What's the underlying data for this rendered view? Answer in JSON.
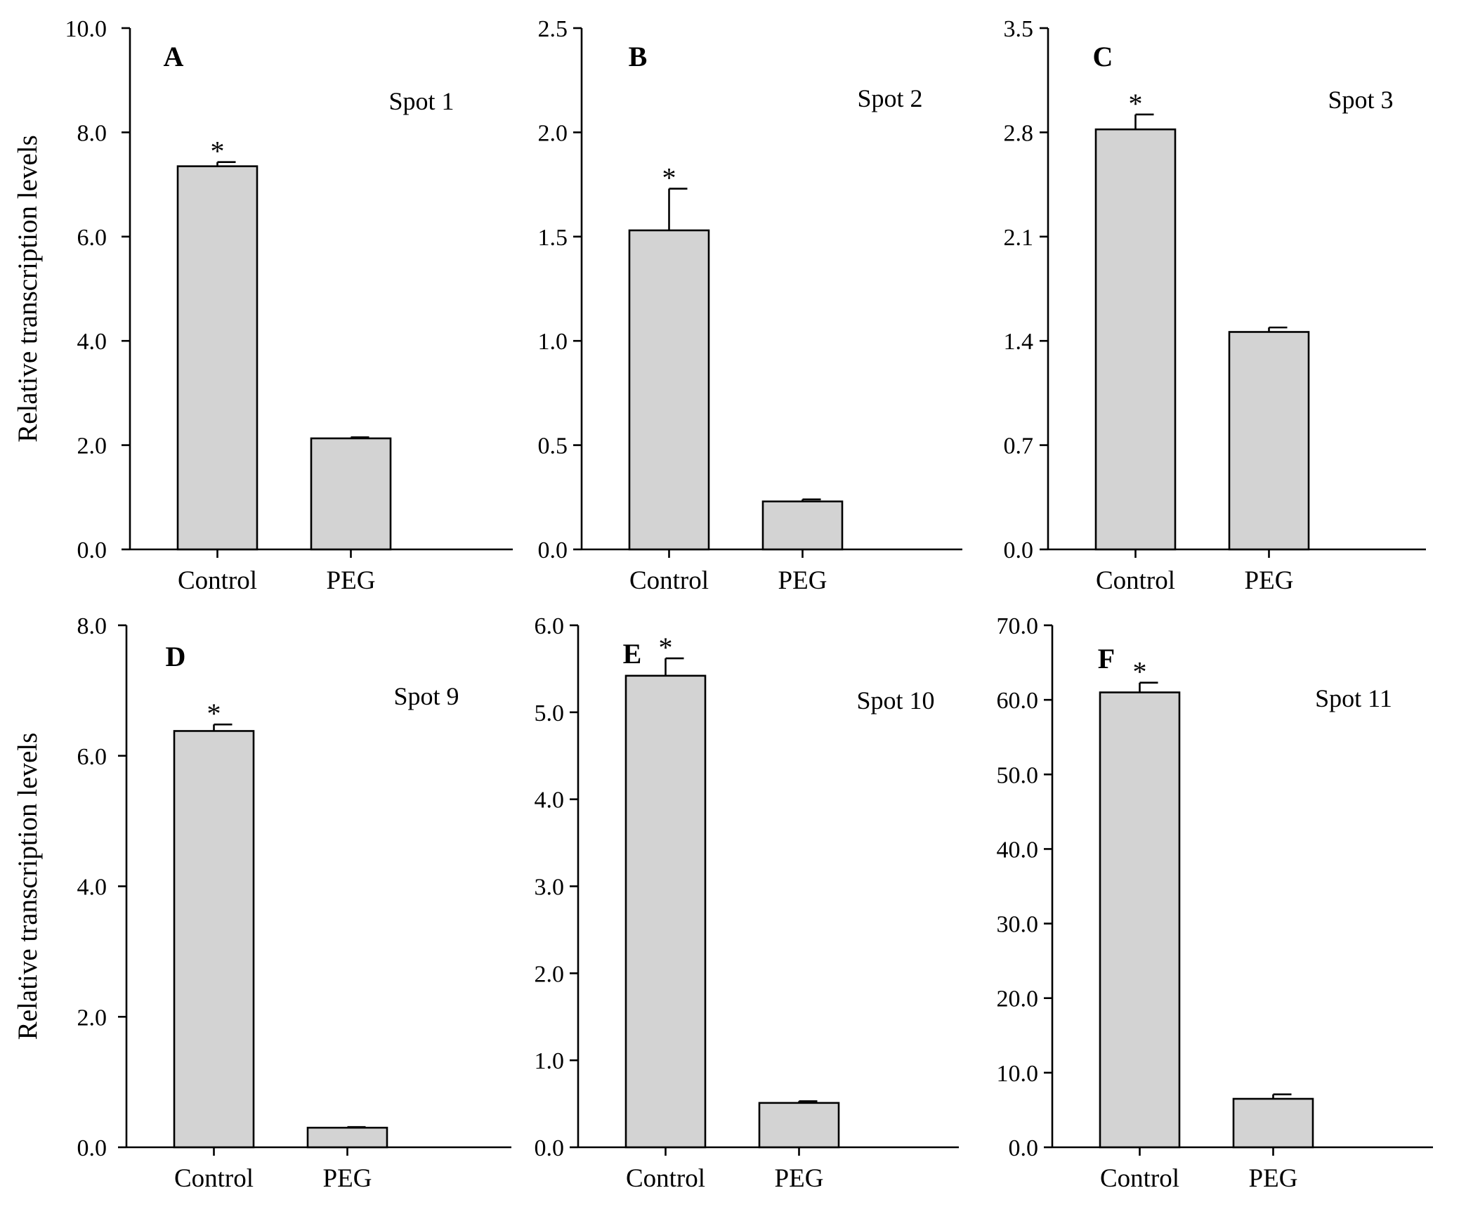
{
  "figure": {
    "ylabel": "Relative transcription levels"
  },
  "chart_data": [
    {
      "type": "bar",
      "panel_label": "A",
      "title": "Spot 1",
      "categories": [
        "Control",
        "PEG"
      ],
      "values": [
        7.35,
        2.13
      ],
      "errors": [
        0.08,
        0.02
      ],
      "significance": [
        "*",
        ""
      ],
      "ylabel": "Relative transcription levels",
      "ylim": [
        0,
        10
      ],
      "yticks": [
        "0.0",
        "2.0",
        "4.0",
        "6.0",
        "8.0",
        "10.0"
      ]
    },
    {
      "type": "bar",
      "panel_label": "B",
      "title": "Spot 2",
      "categories": [
        "Control",
        "PEG"
      ],
      "values": [
        1.53,
        0.23
      ],
      "errors": [
        0.2,
        0.01
      ],
      "significance": [
        "*",
        ""
      ],
      "ylabel": "",
      "ylim": [
        0,
        2.5
      ],
      "yticks": [
        "0.0",
        "0.5",
        "1.0",
        "1.5",
        "2.0",
        "2.5"
      ]
    },
    {
      "type": "bar",
      "panel_label": "C",
      "title": "Spot 3",
      "categories": [
        "Control",
        "PEG"
      ],
      "values": [
        2.82,
        1.46
      ],
      "errors": [
        0.1,
        0.03
      ],
      "significance": [
        "*",
        ""
      ],
      "ylabel": "",
      "ylim": [
        0,
        3.5
      ],
      "yticks": [
        "0.0",
        "0.7",
        "1.4",
        "2.1",
        "2.8",
        "3.5"
      ]
    },
    {
      "type": "bar",
      "panel_label": "D",
      "title": "Spot 9",
      "categories": [
        "Control",
        "PEG"
      ],
      "values": [
        6.38,
        0.3
      ],
      "errors": [
        0.1,
        0.01
      ],
      "significance": [
        "*",
        ""
      ],
      "ylabel": "Relative transcription levels",
      "ylim": [
        0,
        8
      ],
      "yticks": [
        "0.0",
        "2.0",
        "4.0",
        "6.0",
        "8.0"
      ]
    },
    {
      "type": "bar",
      "panel_label": "E",
      "title": "Spot 10",
      "categories": [
        "Control",
        "PEG"
      ],
      "values": [
        5.42,
        0.51
      ],
      "errors": [
        0.2,
        0.02
      ],
      "significance": [
        "*",
        ""
      ],
      "ylabel": "",
      "ylim": [
        0,
        6
      ],
      "yticks": [
        "0.0",
        "1.0",
        "2.0",
        "3.0",
        "4.0",
        "5.0",
        "6.0"
      ]
    },
    {
      "type": "bar",
      "panel_label": "F",
      "title": "Spot 11",
      "categories": [
        "Control",
        "PEG"
      ],
      "values": [
        61.0,
        6.5
      ],
      "errors": [
        1.3,
        0.6
      ],
      "significance": [
        "*",
        ""
      ],
      "ylabel": "",
      "ylim": [
        0,
        70
      ],
      "yticks": [
        "0.0",
        "10.0",
        "20.0",
        "30.0",
        "40.0",
        "50.0",
        "60.0",
        "70.0"
      ]
    }
  ]
}
